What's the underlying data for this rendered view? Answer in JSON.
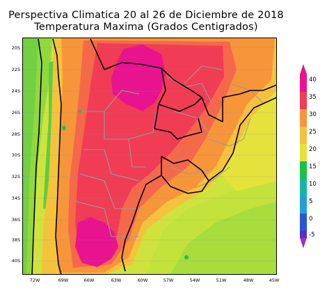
{
  "title": {
    "line1": "Perspectiva Climatica 20 al 26 de Diciembre de 2018",
    "line2": "Temperatura Maxima (Grados Centigrados)"
  },
  "map": {
    "lat_labels": [
      "20S",
      "22S",
      "24S",
      "26S",
      "28S",
      "30S",
      "32S",
      "34S",
      "36S",
      "38S",
      "40S"
    ],
    "lon_labels": [
      "72W",
      "69W",
      "66W",
      "63W",
      "60W",
      "57W",
      "54W",
      "51W",
      "48W",
      "45W"
    ]
  },
  "colorbar": {
    "ticks": [
      "40",
      "35",
      "30",
      "25",
      "20",
      "15",
      "10",
      "5",
      "0",
      "-5"
    ],
    "colors": {
      "magenta": "#e8138f",
      "red": "#f03c55",
      "orange_red": "#f5684a",
      "orange": "#f7953a",
      "yellow_orange": "#f5c23b",
      "yellow": "#e5e33b",
      "yellow_green": "#b9e33d",
      "green": "#5fcd3f",
      "bright_green": "#18c24a",
      "teal": "#17b5a4",
      "cyan": "#1fa0d8",
      "blue": "#2c54d6",
      "indigo": "#5b2fc0",
      "violet": "#9b30c6"
    }
  }
}
